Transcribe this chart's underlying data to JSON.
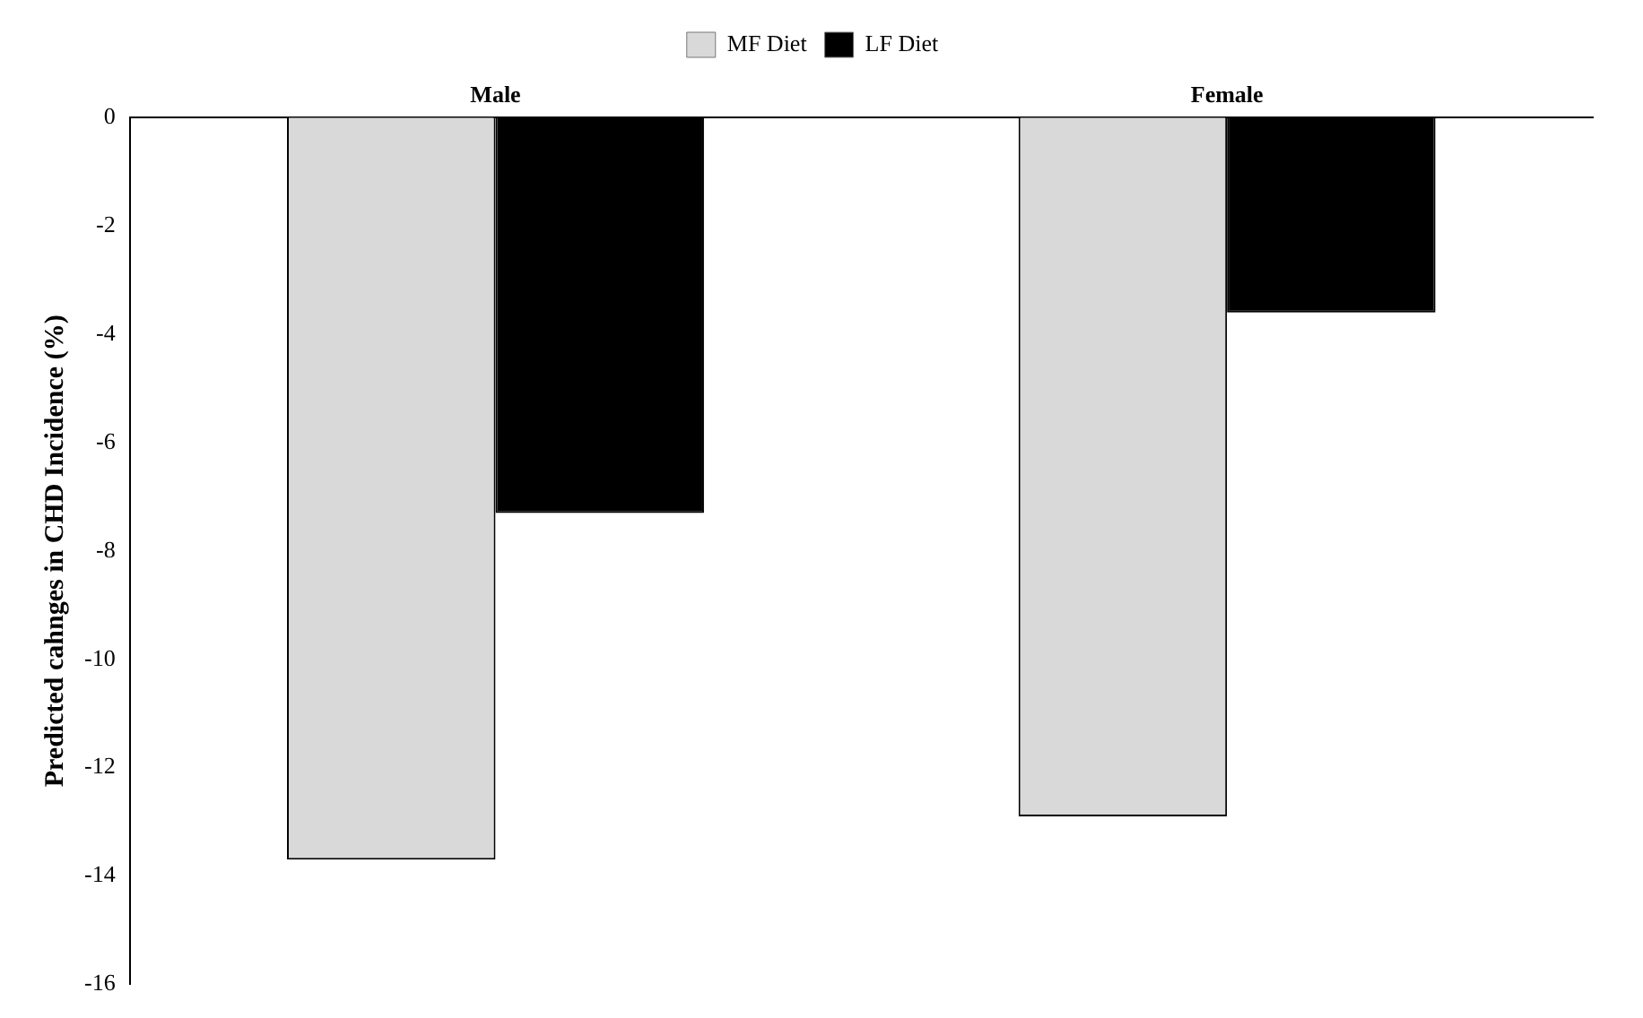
{
  "chart_data": {
    "type": "bar",
    "ylabel": "Predicted cahnges in CHD Incidence (%)",
    "categories": [
      "Male",
      "Female"
    ],
    "series": [
      {
        "name": "MF Diet",
        "color": "#d9d9d9",
        "values": [
          -13.7,
          -12.9
        ]
      },
      {
        "name": "LF Diet",
        "color": "#000000",
        "values": [
          -7.3,
          -3.6
        ]
      }
    ],
    "ylim": [
      -16,
      0
    ],
    "yticks": [
      -16,
      -14,
      -12,
      -10,
      -8,
      -6,
      -4,
      -2,
      0
    ],
    "grid": false,
    "legend": "top"
  }
}
